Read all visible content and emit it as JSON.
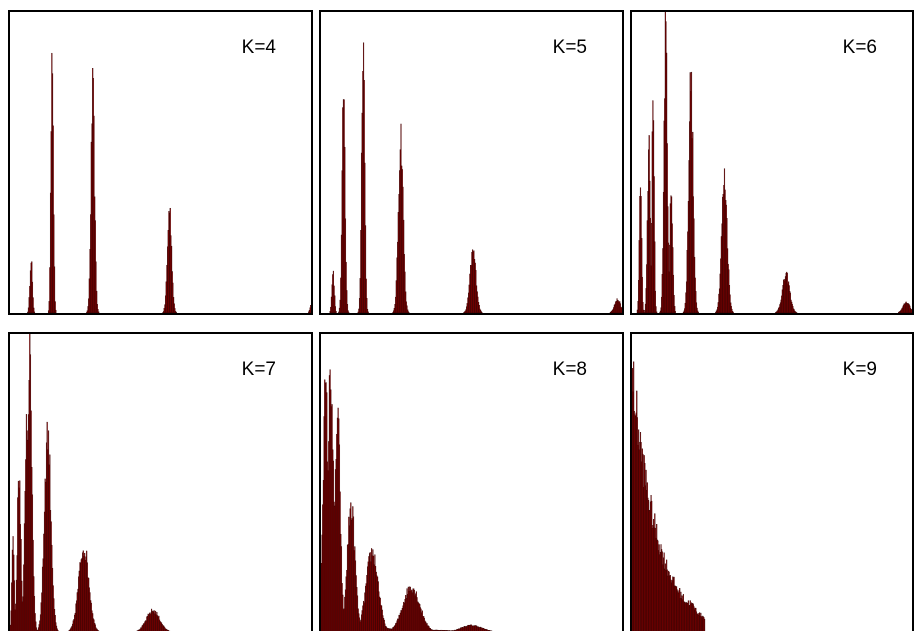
{
  "colors": {
    "bar_fill": "#8b0000",
    "bar_stroke": "#2a0000",
    "frame": "#000000",
    "background": "#ffffff"
  },
  "chart_data": [
    {
      "type": "bar",
      "label": "K=4",
      "ylim": [
        0,
        1
      ],
      "peaks": [
        {
          "x": 0.07,
          "height": 0.21,
          "width": 0.004
        },
        {
          "x": 0.14,
          "height": 1.05,
          "width": 0.004
        },
        {
          "x": 0.275,
          "height": 0.82,
          "width": 0.006
        },
        {
          "x": 0.53,
          "height": 0.39,
          "width": 0.007
        },
        {
          "x": 1.0,
          "height": 0.03,
          "width": 0.004
        }
      ]
    },
    {
      "type": "bar",
      "label": "K=5",
      "ylim": [
        0,
        1
      ],
      "peaks": [
        {
          "x": 0.04,
          "height": 0.16,
          "width": 0.004
        },
        {
          "x": 0.075,
          "height": 0.8,
          "width": 0.005
        },
        {
          "x": 0.14,
          "height": 1.05,
          "width": 0.005
        },
        {
          "x": 0.265,
          "height": 0.66,
          "width": 0.008
        },
        {
          "x": 0.505,
          "height": 0.23,
          "width": 0.01
        },
        {
          "x": 0.985,
          "height": 0.05,
          "width": 0.01
        }
      ]
    },
    {
      "type": "bar",
      "label": "K=6",
      "ylim": [
        0,
        1
      ],
      "peaks": [
        {
          "x": 0.03,
          "height": 0.5,
          "width": 0.004
        },
        {
          "x": 0.06,
          "height": 0.62,
          "width": 0.005
        },
        {
          "x": 0.075,
          "height": 0.78,
          "width": 0.004
        },
        {
          "x": 0.12,
          "height": 1.05,
          "width": 0.006
        },
        {
          "x": 0.14,
          "height": 0.47,
          "width": 0.005
        },
        {
          "x": 0.21,
          "height": 0.86,
          "width": 0.008
        },
        {
          "x": 0.33,
          "height": 0.5,
          "width": 0.01
        },
        {
          "x": 0.55,
          "height": 0.14,
          "width": 0.013
        },
        {
          "x": 0.98,
          "height": 0.04,
          "width": 0.012
        }
      ]
    },
    {
      "type": "bar",
      "label": "K=7",
      "ylim": [
        0,
        1
      ],
      "peaks": [
        {
          "x": 0.01,
          "height": 0.35,
          "width": 0.004
        },
        {
          "x": 0.03,
          "height": 0.6,
          "width": 0.006
        },
        {
          "x": 0.055,
          "height": 0.8,
          "width": 0.006
        },
        {
          "x": 0.065,
          "height": 1.02,
          "width": 0.008
        },
        {
          "x": 0.125,
          "height": 0.75,
          "width": 0.011
        },
        {
          "x": 0.245,
          "height": 0.32,
          "width": 0.017
        },
        {
          "x": 0.475,
          "height": 0.08,
          "width": 0.022
        }
      ]
    },
    {
      "type": "bar",
      "label": "K=8",
      "ylim": [
        0,
        1
      ],
      "peaks": [
        {
          "x": 0.015,
          "height": 0.9,
          "width": 0.009
        },
        {
          "x": 0.032,
          "height": 0.98,
          "width": 0.009
        },
        {
          "x": 0.055,
          "height": 0.8,
          "width": 0.009
        },
        {
          "x": 0.1,
          "height": 0.47,
          "width": 0.013
        },
        {
          "x": 0.17,
          "height": 0.3,
          "width": 0.02
        },
        {
          "x": 0.3,
          "height": 0.17,
          "width": 0.028
        },
        {
          "x": 0.5,
          "height": 0.025,
          "width": 0.035
        }
      ],
      "floor": 0.02
    },
    {
      "type": "bar",
      "label": "K=9",
      "ylim": [
        0,
        1
      ],
      "decay": {
        "amplitude": 0.98,
        "scale": 0.09
      },
      "bumps": [
        {
          "x": 0.1,
          "height": 0.12,
          "width": 0.022
        },
        {
          "x": 0.205,
          "height": 0.07,
          "width": 0.03
        }
      ],
      "xmax": 0.26
    }
  ]
}
